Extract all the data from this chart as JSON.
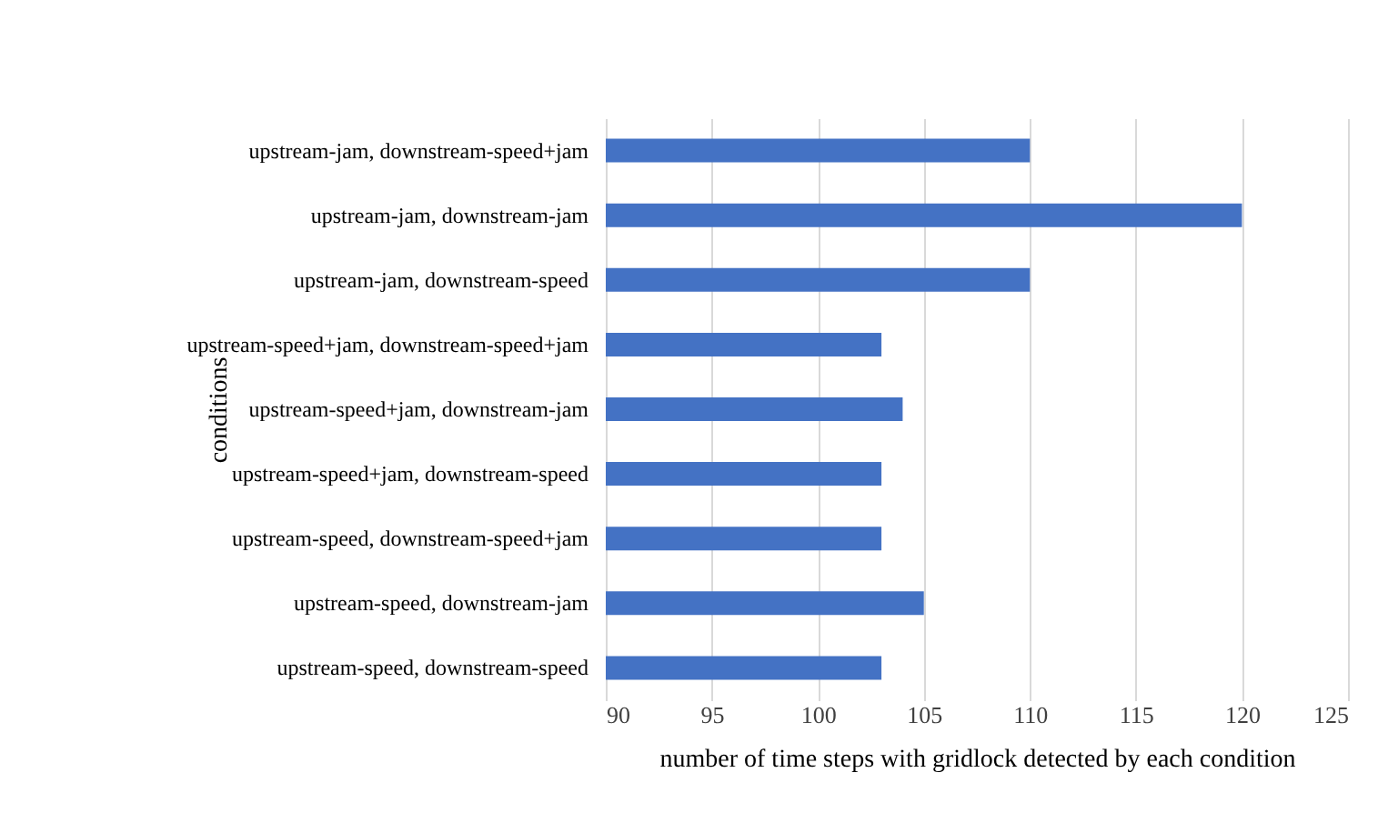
{
  "chart_data": {
    "type": "bar",
    "orientation": "horizontal",
    "xlabel": "number of time steps with gridlock detected by each condition",
    "ylabel": "conditions",
    "categories": [
      "upstream-jam, downstream-speed+jam",
      "upstream-jam, downstream-jam",
      "upstream-jam, downstream-speed",
      "upstream-speed+jam, downstream-speed+jam",
      "upstream-speed+jam, downstream-jam",
      "upstream-speed+jam, downstream-speed",
      "upstream-speed, downstream-speed+jam",
      "upstream-speed, downstream-jam",
      "upstream-speed, downstream-speed"
    ],
    "values": [
      110,
      120,
      110,
      103,
      104,
      103,
      103,
      105,
      103
    ],
    "color": "#4472c4",
    "xlim": [
      90,
      125
    ],
    "xticks": [
      90,
      95,
      100,
      105,
      110,
      115,
      120,
      125
    ],
    "grid": "x"
  }
}
